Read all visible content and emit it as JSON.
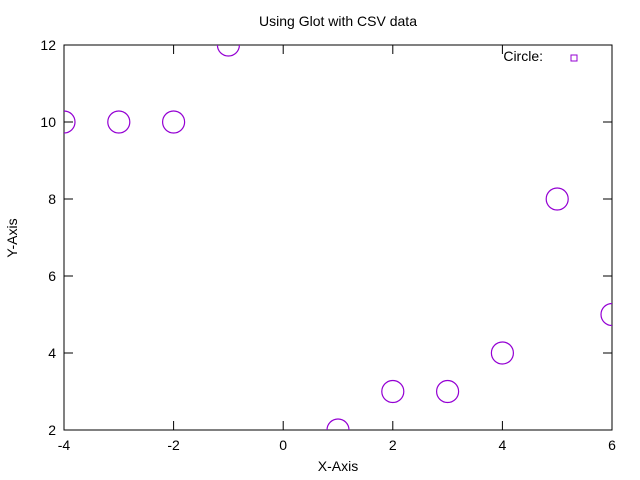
{
  "chart_data": {
    "type": "scatter",
    "title": "Using Glot with CSV data",
    "xlabel": "X-Axis",
    "ylabel": "Y-Axis",
    "xlim": [
      -4,
      6
    ],
    "ylim": [
      2,
      12
    ],
    "xticks": [
      -4,
      -2,
      0,
      2,
      4,
      6
    ],
    "yticks": [
      2,
      4,
      6,
      8,
      10,
      12
    ],
    "grid": false,
    "legend_position": "top-right",
    "series": [
      {
        "name": "Circle:",
        "color": "#9400d3",
        "marker": "circle",
        "points": [
          {
            "x": -4,
            "y": 10
          },
          {
            "x": -3,
            "y": 10
          },
          {
            "x": -2,
            "y": 10
          },
          {
            "x": -1,
            "y": 12
          },
          {
            "x": 1,
            "y": 2
          },
          {
            "x": 2,
            "y": 3
          },
          {
            "x": 3,
            "y": 3
          },
          {
            "x": 4,
            "y": 4
          },
          {
            "x": 5,
            "y": 8
          },
          {
            "x": 6,
            "y": 5
          }
        ]
      }
    ]
  }
}
